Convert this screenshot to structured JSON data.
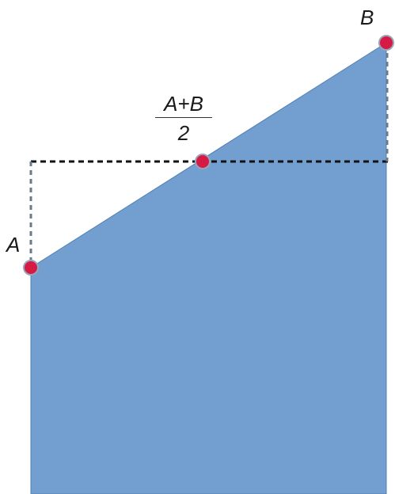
{
  "labels": {
    "point_a": "A",
    "point_b": "B",
    "midpoint_numerator": "A+B",
    "midpoint_denominator": "2"
  },
  "colors": {
    "fill": "#729fcf",
    "fill_stroke": "#4f7fb3",
    "point": "#d61a46",
    "point_stroke": "#9aa4b8",
    "dashed_black": "#111111",
    "dashed_grey": "#6a7a8c"
  },
  "icons": {
    "point_marker": "circle"
  }
}
